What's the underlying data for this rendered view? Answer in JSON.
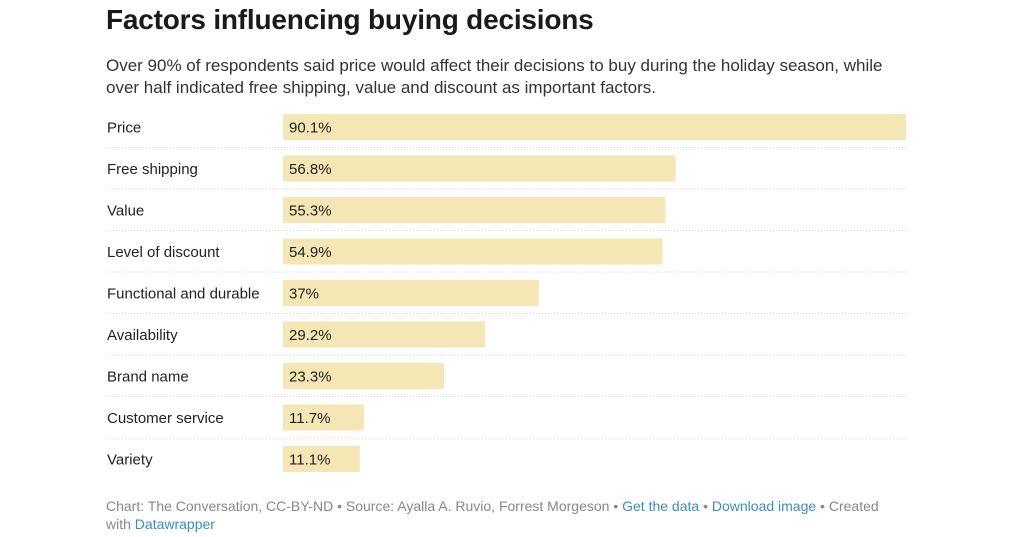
{
  "chart_data": {
    "type": "bar",
    "orientation": "horizontal",
    "title": "Factors influencing buying decisions",
    "subtitle": "Over 90% of respondents said price would affect their decisions to buy during the holiday season, while over half indicated free shipping, value and discount as important factors.",
    "categories": [
      "Price",
      "Free shipping",
      "Value",
      "Level of discount",
      "Functional and durable",
      "Availability",
      "Brand name",
      "Customer service",
      "Variety"
    ],
    "values": [
      90.1,
      56.8,
      55.3,
      54.9,
      37,
      29.2,
      23.3,
      11.7,
      11.1
    ],
    "value_labels": [
      "90.1%",
      "56.8%",
      "55.3%",
      "54.9%",
      "37%",
      "29.2%",
      "23.3%",
      "11.7%",
      "11.1%"
    ],
    "xlim": [
      0,
      90.1
    ],
    "bar_color": "#f4e7b5",
    "grid": false,
    "row_separators": "dotted"
  },
  "footer": {
    "credit": "Chart: The Conversation, CC-BY-ND",
    "sep1": " • ",
    "source": "Source: Ayalla A. Ruvio, Forrest Morgeson",
    "sep2": " • ",
    "get_data": "Get the data",
    "sep3": " • ",
    "download": "Download image",
    "sep4": " • ",
    "created": "Created with ",
    "tool": "Datawrapper"
  },
  "colors": {
    "link": "#3c8dbc",
    "muted": "#888888",
    "bar": "#f4e7b5"
  }
}
